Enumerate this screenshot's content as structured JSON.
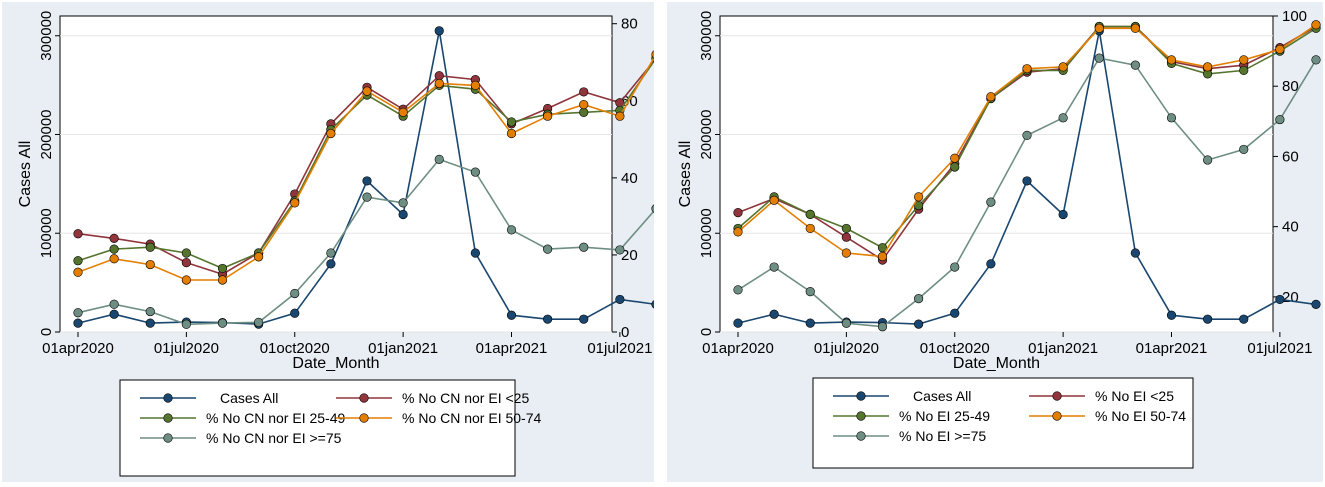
{
  "chart_data": [
    {
      "type": "line",
      "xlabel": "Date_Month",
      "ylabel": "Cases All",
      "x_ticks": [
        "01apr2020",
        "01jul2020",
        "01oct2020",
        "01jan2021",
        "01apr2021",
        "01jul2021"
      ],
      "y_left_ticks": [
        "0",
        "100000",
        "200000",
        "300000"
      ],
      "y_right_ticks": [
        "0",
        "20",
        "40",
        "60",
        "80"
      ],
      "ylim_left": [
        0,
        320000
      ],
      "ylim_right": [
        0,
        82
      ],
      "series": [
        {
          "name": "Cases All",
          "axis": "left",
          "color": "#1a476f",
          "values": [
            9000,
            18000,
            9000,
            10000,
            9500,
            8000,
            19000,
            69000,
            153000,
            119000,
            305000,
            80000,
            17000,
            13000,
            13000,
            33000,
            28000
          ]
        },
        {
          "name": "% No CN nor EI <25",
          "axis": "right",
          "color": "#90353b",
          "values": [
            25.5,
            24.3,
            22.8,
            18,
            15,
            20.5,
            35.8,
            54,
            63.5,
            57.8,
            66.5,
            65.5,
            54,
            58,
            62.3,
            59.5,
            71
          ]
        },
        {
          "name": "% No CN nor EI 25-49",
          "axis": "right",
          "color": "#55752f",
          "values": [
            18.5,
            21.5,
            22,
            20.5,
            16.5,
            20.5,
            34,
            52.5,
            61.5,
            56,
            64,
            63,
            54.5,
            56.5,
            57,
            57.5,
            71
          ]
        },
        {
          "name": "% No CN nor EI 50-74",
          "axis": "right",
          "color": "#e37e00",
          "values": [
            15.5,
            19,
            17.5,
            13.5,
            13.5,
            19.5,
            33.5,
            51.5,
            62.5,
            57,
            64.5,
            64,
            51.5,
            56,
            59,
            56,
            72
          ]
        },
        {
          "name": "% No CN nor EI >=75",
          "axis": "right",
          "color": "#6e8e84",
          "values": [
            5,
            7.2,
            5.3,
            2,
            2.3,
            2.5,
            10,
            20.5,
            35,
            33.5,
            44.8,
            41.5,
            26.5,
            21.5,
            22,
            21.3,
            32
          ]
        }
      ],
      "legend": [
        "Cases All",
        "% No CN nor EI <25",
        "% No CN nor EI 25-49",
        "% No CN nor EI 50-74",
        "% No CN nor EI >=75"
      ]
    },
    {
      "type": "line",
      "xlabel": "Date_Month",
      "ylabel": "Cases All",
      "x_ticks": [
        "01apr2020",
        "01jul2020",
        "01oct2020",
        "01jan2021",
        "01apr2021",
        "01jul2021"
      ],
      "y_left_ticks": [
        "0",
        "100000",
        "200000",
        "300000"
      ],
      "y_right_ticks": [
        "20",
        "40",
        "60",
        "80",
        "100"
      ],
      "ylim_left": [
        0,
        320000
      ],
      "ylim_right": [
        10,
        100
      ],
      "series": [
        {
          "name": "Cases All",
          "axis": "left",
          "color": "#1a476f",
          "values": [
            9000,
            18000,
            9000,
            10000,
            9500,
            8000,
            19000,
            69000,
            153000,
            119000,
            305000,
            80000,
            17000,
            13000,
            13000,
            33000,
            28000
          ]
        },
        {
          "name": "% No EI <25",
          "axis": "right",
          "color": "#90353b",
          "values": [
            44,
            48,
            43.5,
            37,
            30.5,
            45,
            58,
            76.5,
            84,
            85,
            97,
            97,
            87,
            85,
            86,
            91,
            97
          ]
        },
        {
          "name": "% No EI 25-49",
          "axis": "right",
          "color": "#55752f",
          "values": [
            39.5,
            48.5,
            43.5,
            39.5,
            34,
            46,
            57,
            76.5,
            84.5,
            84.5,
            97,
            97,
            86.5,
            83.5,
            84.5,
            90,
            96.5
          ]
        },
        {
          "name": "% No EI 50-74",
          "axis": "right",
          "color": "#e37e00",
          "values": [
            38.5,
            47.5,
            39.5,
            32.5,
            31.5,
            48.5,
            59.5,
            77,
            85,
            85.5,
            96.5,
            96.5,
            87.5,
            85.5,
            87.5,
            90.5,
            97.5
          ]
        },
        {
          "name": "% No EI >=75",
          "axis": "right",
          "color": "#6e8e84",
          "values": [
            22,
            28.5,
            21.5,
            12.5,
            11.5,
            19.5,
            28.5,
            47,
            66,
            71,
            88,
            86,
            71,
            59,
            62,
            70.5,
            87.5
          ]
        }
      ],
      "legend": [
        "Cases All",
        "% No EI <25",
        "% No EI 25-49",
        "% No EI 50-74",
        "% No EI  >=75"
      ]
    }
  ]
}
